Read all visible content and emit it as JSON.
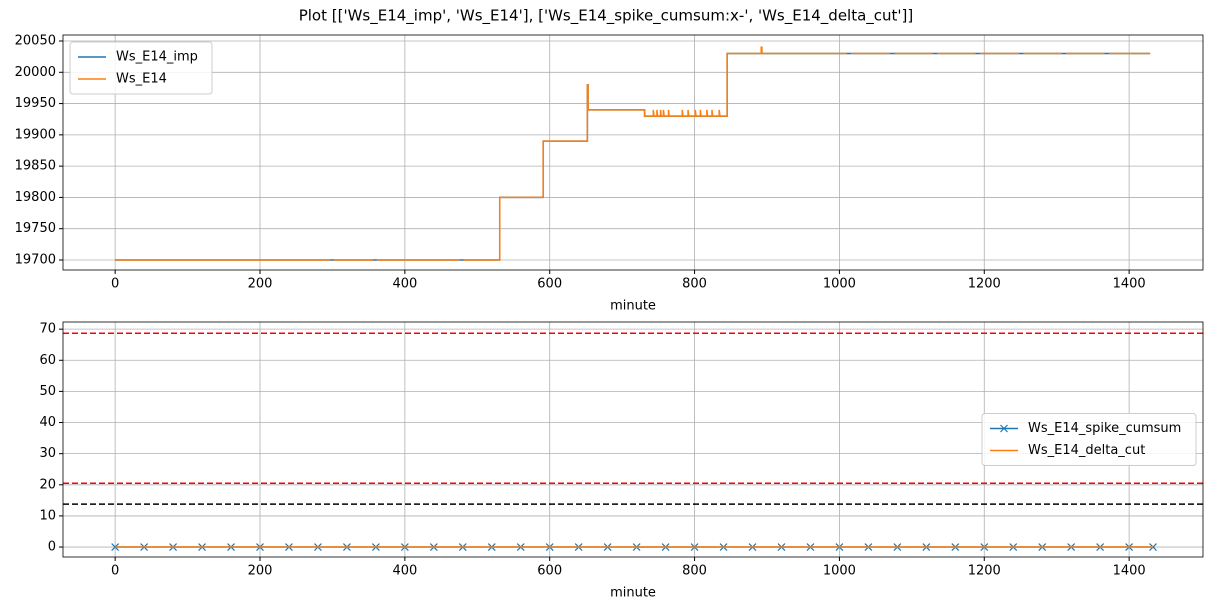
{
  "title": "Plot [['Ws_E14_imp', 'Ws_E14'], ['Ws_E14_spike_cumsum:x-', 'Ws_E14_delta_cut']]",
  "chart_data": [
    {
      "type": "line",
      "xlabel": "minute",
      "xlim": [
        -72,
        1502
      ],
      "ylim": [
        19684,
        20059.6
      ],
      "xticks": [
        0,
        200,
        400,
        600,
        800,
        1000,
        1200,
        1400
      ],
      "yticks": [
        19700,
        19750,
        19800,
        19850,
        19900,
        19950,
        20000,
        20050
      ],
      "grid": true,
      "legend": "upper left",
      "series": [
        {
          "name": "Ws_E14_imp",
          "color": "#1f77b4",
          "x": [
            0,
            531,
            531,
            591,
            591,
            652,
            652,
            653,
            653,
            731,
            731,
            845,
            845,
            1429
          ],
          "values": [
            19700,
            19700,
            19800,
            19800,
            19890,
            19890,
            19980,
            19980,
            19940,
            19940,
            19930,
            19930,
            20030,
            20030
          ]
        },
        {
          "name": "Ws_E14",
          "color": "#ff7f0e",
          "x": [
            0,
            297,
            299,
            302,
            356,
            358,
            361,
            476,
            478,
            481,
            531,
            531,
            591,
            591,
            652,
            652,
            653,
            653,
            731,
            731,
            743,
            743,
            744,
            748,
            748,
            749,
            753,
            753,
            754,
            757,
            757,
            758,
            764,
            764,
            765,
            783,
            783,
            784,
            791,
            791,
            792,
            801,
            801,
            802,
            808,
            808,
            809,
            817,
            817,
            818,
            824,
            824,
            825,
            834,
            834,
            835,
            845,
            845,
            892,
            892,
            893,
            893,
            1010,
            1013,
            1016,
            1070,
            1073,
            1076,
            1129,
            1132,
            1135,
            1188,
            1191,
            1194,
            1248,
            1251,
            1254,
            1307,
            1310,
            1313,
            1366,
            1369,
            1372,
            1429
          ],
          "values": [
            19700,
            19700,
            null,
            19700,
            19700,
            null,
            19700,
            19700,
            null,
            19700,
            19700,
            19800,
            19800,
            19890,
            19890,
            19980,
            19980,
            19940,
            19940,
            19930,
            19930,
            19940,
            19930,
            19930,
            19940,
            19930,
            19930,
            19940,
            19930,
            19930,
            19940,
            19930,
            19930,
            19940,
            19930,
            19930,
            19940,
            19930,
            19930,
            19940,
            19930,
            19930,
            19940,
            19930,
            19930,
            19940,
            19930,
            19930,
            19940,
            19930,
            19930,
            19940,
            19930,
            19930,
            19940,
            19930,
            19930,
            20030,
            20030,
            20040,
            20040,
            20030,
            20030,
            null,
            20030,
            20030,
            null,
            20030,
            20030,
            null,
            20030,
            20030,
            null,
            20030,
            20030,
            null,
            20030,
            20030,
            null,
            20030,
            20030,
            null,
            20030,
            20030
          ]
        }
      ]
    },
    {
      "type": "line",
      "xlabel": "minute",
      "xlim": [
        -72,
        1502
      ],
      "ylim": [
        -3.2,
        72.3
      ],
      "xticks": [
        0,
        200,
        400,
        600,
        800,
        1000,
        1200,
        1400
      ],
      "yticks": [
        0,
        10,
        20,
        30,
        40,
        50,
        60,
        70
      ],
      "grid": true,
      "legend": "center right",
      "series": [
        {
          "name": "Ws_E14_spike_cumsum",
          "color": "#1f77b4",
          "marker": "x",
          "x": [
            0,
            40,
            80,
            120,
            160,
            200,
            240,
            280,
            320,
            360,
            400,
            440,
            480,
            520,
            560,
            600,
            640,
            680,
            720,
            760,
            800,
            840,
            880,
            920,
            960,
            1000,
            1040,
            1080,
            1120,
            1160,
            1200,
            1240,
            1280,
            1320,
            1360,
            1400,
            1433
          ],
          "values": [
            0,
            0,
            0,
            0,
            0,
            0,
            0,
            0,
            0,
            0,
            0,
            0,
            0,
            0,
            0,
            0,
            0,
            0,
            0,
            0,
            0,
            0,
            0,
            0,
            0,
            0,
            0,
            0,
            0,
            0,
            0,
            0,
            0,
            0,
            0,
            0,
            0
          ]
        },
        {
          "name": "Ws_E14_delta_cut",
          "color": "#ff7f0e",
          "x": [
            0,
            1433
          ],
          "values": [
            0,
            0
          ]
        }
      ],
      "hlines": [
        {
          "value": 68.7,
          "color": "#ff0000"
        },
        {
          "value": 20.5,
          "color": "#ff0000"
        },
        {
          "value": 13.8,
          "color": "#000000"
        }
      ]
    }
  ]
}
